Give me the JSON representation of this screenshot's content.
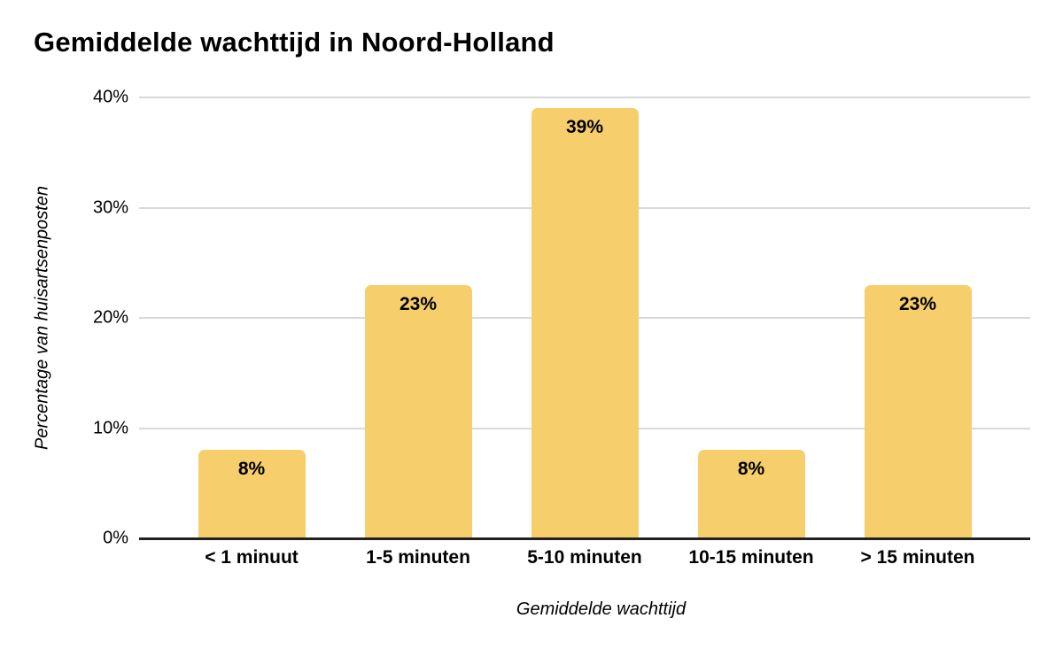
{
  "chart": {
    "title": "Gemiddelde wachttijd in Noord-Holland",
    "colors": {
      "bar_fill": "#F6CE6B",
      "gridline": "#D9D9D9",
      "baseline": "#212121",
      "text": "#000000",
      "background": "#FFFFFF"
    }
  },
  "chart_data": {
    "type": "bar",
    "title": "Gemiddelde wachttijd in Noord-Holland",
    "xlabel": "Gemiddelde wachttijd",
    "ylabel": "Percentage van huisartsenposten",
    "categories": [
      "< 1 minuut",
      "1-5 minuten",
      "5-10 minuten",
      "10-15 minuten",
      "> 15 minuten"
    ],
    "values": [
      8,
      23,
      39,
      8,
      23
    ],
    "data_labels": [
      "8%",
      "23%",
      "39%",
      "8%",
      "23%"
    ],
    "ylim": [
      0,
      40
    ],
    "yticks": [
      0,
      10,
      20,
      30,
      40
    ],
    "ytick_labels": [
      "0%",
      "10%",
      "20%",
      "30%",
      "40%"
    ],
    "grid": "horizontal",
    "legend": "none",
    "bar_color": "#F6CE6B"
  }
}
